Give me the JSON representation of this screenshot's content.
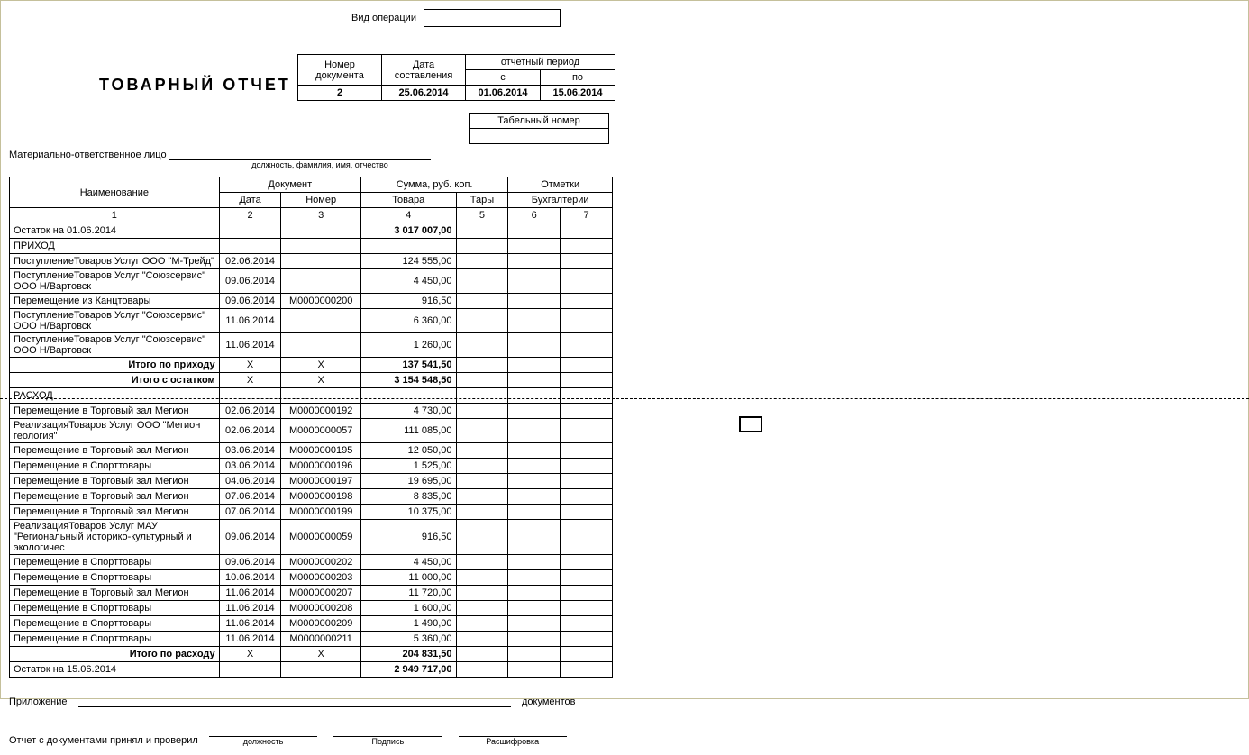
{
  "labels": {
    "opType": "Вид операции",
    "docNum": "Номер документа",
    "compDate": "Дата составления",
    "period": "отчетный период",
    "from": "с",
    "to": "по",
    "title": "ТОВАРНЫЙ  ОТЧЕТ",
    "tabel": "Табельный номер",
    "resp": "Материально-ответственное лицо",
    "respHint": "должность, фамилия, имя, отчество",
    "naim": "Наименование",
    "document": "Документ",
    "date": "Дата",
    "number": "Номер",
    "sum": "Сумма, руб. коп.",
    "tovara": "Товара",
    "tary": "Тары",
    "marks": "Отметки",
    "bookkeeping": "Бухгалтерии",
    "c1": "1",
    "c2": "2",
    "c3": "3",
    "c4": "4",
    "c5": "5",
    "c6": "6",
    "c7": "7",
    "prihod": "ПРИХОД",
    "rashod": "РАСХОД",
    "itogoPrihod": "Итого по приходу",
    "itogoOstatok": "Итого с остатком",
    "itogoRashod": "Итого по расходу",
    "attachment": "Приложение",
    "documents": "документов",
    "checked": "Отчет с документами принял и проверил",
    "position": "должность",
    "signature": "Подпись",
    "decoding": "Расшифровка"
  },
  "meta": {
    "docNumber": "2",
    "compDate": "25.06.2014",
    "periodFrom": "01.06.2014",
    "periodTo": "15.06.2014"
  },
  "startBalance": {
    "name": "Остаток на 01.06.2014",
    "sum": "3 017 007,00"
  },
  "income": [
    {
      "name": "ПоступлениеТоваров Услуг ООО \"М-Трейд\"",
      "date": "02.06.2014",
      "num": "",
      "sum": "124 555,00"
    },
    {
      "name": "ПоступлениеТоваров Услуг \"Союзсервис\" ООО  Н/Вартовск",
      "date": "09.06.2014",
      "num": "",
      "sum": "4 450,00"
    },
    {
      "name": "Перемещение из Канцтовары",
      "date": "09.06.2014",
      "num": "М0000000200",
      "sum": "916,50"
    },
    {
      "name": "ПоступлениеТоваров Услуг \"Союзсервис\" ООО  Н/Вартовск",
      "date": "11.06.2014",
      "num": "",
      "sum": "6 360,00"
    },
    {
      "name": "ПоступлениеТоваров Услуг \"Союзсервис\" ООО  Н/Вартовск",
      "date": "11.06.2014",
      "num": "",
      "sum": "1 260,00"
    }
  ],
  "incomeTotal": "137 541,50",
  "withBalanceTotal": "3 154 548,50",
  "expense": [
    {
      "name": "Перемещение в Торговый зал Мегион",
      "date": "02.06.2014",
      "num": "М0000000192",
      "sum": "4 730,00"
    },
    {
      "name": "РеализацияТоваров Услуг ООО \"Мегион геология\"",
      "date": "02.06.2014",
      "num": "М0000000057",
      "sum": "111 085,00"
    },
    {
      "name": "Перемещение в Торговый зал Мегион",
      "date": "03.06.2014",
      "num": "М0000000195",
      "sum": "12 050,00"
    },
    {
      "name": "Перемещение в Спорттовары",
      "date": "03.06.2014",
      "num": "М0000000196",
      "sum": "1 525,00"
    },
    {
      "name": "Перемещение в Торговый зал Мегион",
      "date": "04.06.2014",
      "num": "М0000000197",
      "sum": "19 695,00"
    },
    {
      "name": "Перемещение в Торговый зал Мегион",
      "date": "07.06.2014",
      "num": "М0000000198",
      "sum": "8 835,00"
    },
    {
      "name": "Перемещение в Торговый зал Мегион",
      "date": "07.06.2014",
      "num": "М0000000199",
      "sum": "10 375,00"
    },
    {
      "name": "РеализацияТоваров Услуг МАУ \"Региональный историко-культурный и экологичес",
      "date": "09.06.2014",
      "num": "М0000000059",
      "sum": "916,50"
    },
    {
      "name": "Перемещение в Спорттовары",
      "date": "09.06.2014",
      "num": "М0000000202",
      "sum": "4 450,00"
    },
    {
      "name": "Перемещение в Спорттовары",
      "date": "10.06.2014",
      "num": "М0000000203",
      "sum": "11 000,00"
    },
    {
      "name": "Перемещение в Торговый зал Мегион",
      "date": "11.06.2014",
      "num": "М0000000207",
      "sum": "11 720,00"
    },
    {
      "name": "Перемещение в Спорттовары",
      "date": "11.06.2014",
      "num": "М0000000208",
      "sum": "1 600,00"
    },
    {
      "name": "Перемещение в Спорттовары",
      "date": "11.06.2014",
      "num": "М0000000209",
      "sum": "1 490,00"
    },
    {
      "name": "Перемещение в Спорттовары",
      "date": "11.06.2014",
      "num": "М0000000211",
      "sum": "5 360,00"
    }
  ],
  "expenseTotal": "204 831,50",
  "endBalance": {
    "name": "Остаток на 15.06.2014",
    "sum": "2 949 717,00"
  },
  "x": "Х"
}
